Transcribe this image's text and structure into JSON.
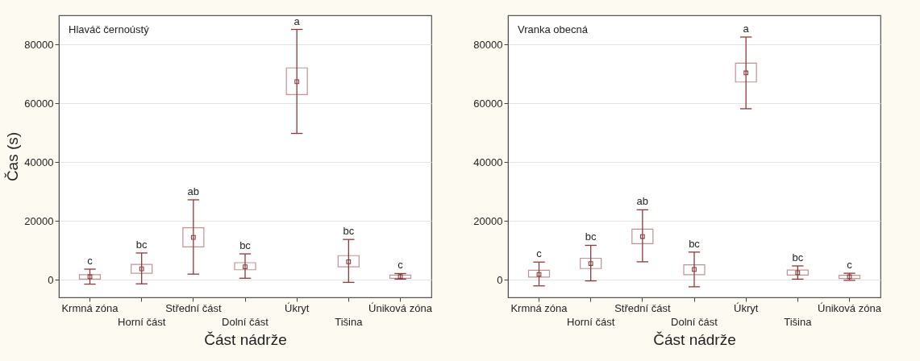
{
  "chart_data": [
    {
      "type": "box",
      "title": "Hlaváč černoústý",
      "xlabel": "Část nádrže",
      "ylabel": "Čas (s)",
      "categories": [
        "Krmná zóna",
        "Horní část",
        "Střední část",
        "Dolní část",
        "Úkryt",
        "Tišina",
        "Úniková zóna"
      ],
      "series": [
        {
          "color": "#8b3a3a",
          "boxes": [
            {
              "low": -1500,
              "q1": 200,
              "median": 1000,
              "q3": 1700,
              "high": 3600
            },
            {
              "low": -1400,
              "q1": 2200,
              "median": 3700,
              "q3": 5200,
              "high": 9100
            },
            {
              "low": 1900,
              "q1": 11200,
              "median": 14400,
              "q3": 17700,
              "high": 27200
            },
            {
              "low": 500,
              "q1": 3400,
              "median": 4400,
              "q3": 5800,
              "high": 8800
            },
            {
              "low": 49800,
              "q1": 63000,
              "median": 67400,
              "q3": 72100,
              "high": 85200
            },
            {
              "low": -900,
              "q1": 4400,
              "median": 6100,
              "q3": 8200,
              "high": 13700
            },
            {
              "low": 200,
              "q1": 500,
              "median": 1100,
              "q3": 1600,
              "high": 2100
            }
          ]
        }
      ],
      "ylim": [
        -6000,
        90000
      ],
      "yticks": [
        0,
        20000,
        40000,
        60000,
        80000
      ],
      "grid": "y",
      "marker": "square",
      "annotations": [
        "c",
        "bc",
        "ab",
        "bc",
        "a",
        "bc",
        "c"
      ]
    },
    {
      "type": "box",
      "title": "Vranka obecná",
      "xlabel": "Část nádrže",
      "categories": [
        "Krmná zóna",
        "Horní část",
        "Střední část",
        "Dolní část",
        "Úkryt",
        "Tišina",
        "Úniková zóna"
      ],
      "series": [
        {
          "color": "#8b3a3a",
          "boxes": [
            {
              "low": -2100,
              "q1": 900,
              "median": 1800,
              "q3": 3200,
              "high": 6000
            },
            {
              "low": -400,
              "q1": 3800,
              "median": 5500,
              "q3": 7300,
              "high": 11700
            },
            {
              "low": 6100,
              "q1": 12300,
              "median": 14700,
              "q3": 17200,
              "high": 23800
            },
            {
              "low": -2400,
              "q1": 1700,
              "median": 3500,
              "q3": 5100,
              "high": 9400
            },
            {
              "low": 58200,
              "q1": 67300,
              "median": 70400,
              "q3": 73700,
              "high": 82600
            },
            {
              "low": 200,
              "q1": 1600,
              "median": 2400,
              "q3": 3300,
              "high": 4700
            },
            {
              "low": -200,
              "q1": 400,
              "median": 1000,
              "q3": 1500,
              "high": 2200
            }
          ]
        }
      ],
      "ylim": [
        -6000,
        90000
      ],
      "yticks": [
        0,
        20000,
        40000,
        60000,
        80000
      ],
      "grid": "y",
      "marker": "square",
      "annotations": [
        "c",
        "bc",
        "ab",
        "bc",
        "a",
        "bc",
        "c"
      ]
    }
  ]
}
